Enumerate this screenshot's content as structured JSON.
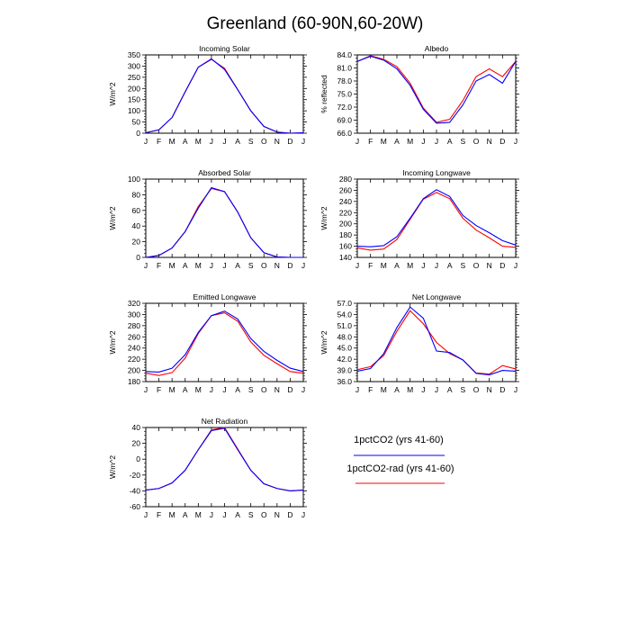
{
  "figure": {
    "title": "Greenland (60-90N,60-20W)"
  },
  "legend": {
    "items": [
      {
        "label": "1pctCO2 (yrs 41-60)",
        "color": "#0000ff"
      },
      {
        "label": "1pctCO2-rad (yrs 41-60)",
        "color": "#ff0000"
      }
    ]
  },
  "chart_data": [
    {
      "type": "line",
      "title": "Incoming Solar",
      "ylabel": "W/m^2",
      "x": [
        "J",
        "F",
        "M",
        "A",
        "M",
        "J",
        "J",
        "A",
        "S",
        "O",
        "N",
        "D",
        "J"
      ],
      "ylim": [
        0,
        350
      ],
      "yticks": [
        "0",
        "50",
        "100",
        "150",
        "200",
        "250",
        "300",
        "350"
      ],
      "series": [
        {
          "name": "1pctCO2 (yrs 41-60)",
          "color": "#0000ff",
          "values": [
            2,
            15,
            70,
            185,
            295,
            332,
            285,
            195,
            100,
            30,
            5,
            0,
            2
          ]
        },
        {
          "name": "1pctCO2-rad (yrs 41-60)",
          "color": "#ff0000",
          "values": [
            2,
            15,
            70,
            185,
            295,
            330,
            290,
            195,
            100,
            30,
            5,
            0,
            2
          ]
        }
      ]
    },
    {
      "type": "line",
      "title": "Albedo",
      "ylabel": "% reflected",
      "x": [
        "J",
        "F",
        "M",
        "A",
        "M",
        "J",
        "J",
        "A",
        "S",
        "O",
        "N",
        "D",
        "J"
      ],
      "ylim": [
        66,
        84
      ],
      "yticks": [
        "66.0",
        "69.0",
        "72.0",
        "75.0",
        "78.0",
        "81.0",
        "84.0"
      ],
      "series": [
        {
          "name": "1pctCO2 (yrs 41-60)",
          "color": "#0000ff",
          "values": [
            82.5,
            83.7,
            82.8,
            80.8,
            77.0,
            71.5,
            68.3,
            68.5,
            72.5,
            78.0,
            79.5,
            77.5,
            82.5
          ]
        },
        {
          "name": "1pctCO2-rad (yrs 41-60)",
          "color": "#ff0000",
          "values": [
            82.5,
            83.8,
            83.0,
            81.3,
            77.5,
            71.8,
            68.5,
            69.2,
            73.5,
            79.0,
            80.8,
            79.0,
            82.5
          ]
        }
      ]
    },
    {
      "type": "line",
      "title": "Absorbed Solar",
      "ylabel": "W/m^2",
      "x": [
        "J",
        "F",
        "M",
        "A",
        "M",
        "J",
        "J",
        "A",
        "S",
        "O",
        "N",
        "D",
        "J"
      ],
      "ylim": [
        0,
        100
      ],
      "yticks": [
        "0",
        "20",
        "40",
        "60",
        "80",
        "100"
      ],
      "series": [
        {
          "name": "1pctCO2 (yrs 41-60)",
          "color": "#0000ff",
          "values": [
            0,
            2.5,
            12,
            33,
            63,
            89,
            84,
            58,
            25,
            6,
            0.5,
            0,
            0
          ]
        },
        {
          "name": "1pctCO2-rad (yrs 41-60)",
          "color": "#ff0000",
          "values": [
            0,
            2.5,
            12,
            33,
            65,
            88,
            84,
            58,
            25,
            6,
            0.5,
            0,
            0
          ]
        }
      ]
    },
    {
      "type": "line",
      "title": "Incoming Longwave",
      "ylabel": "W/m^2",
      "x": [
        "J",
        "F",
        "M",
        "A",
        "M",
        "J",
        "J",
        "A",
        "S",
        "O",
        "N",
        "D",
        "J"
      ],
      "ylim": [
        140,
        280
      ],
      "yticks": [
        "140",
        "160",
        "180",
        "200",
        "220",
        "240",
        "260",
        "280"
      ],
      "series": [
        {
          "name": "1pctCO2 (yrs 41-60)",
          "color": "#0000ff",
          "values": [
            160,
            159,
            161,
            177,
            210,
            245,
            261,
            249,
            215,
            197,
            184,
            170,
            162
          ]
        },
        {
          "name": "1pctCO2-rad (yrs 41-60)",
          "color": "#ff0000",
          "values": [
            157,
            153,
            155,
            172,
            208,
            244,
            256,
            245,
            210,
            189,
            175,
            160,
            158
          ]
        }
      ]
    },
    {
      "type": "line",
      "title": "Emitted Longwave",
      "ylabel": "W/m^2",
      "x": [
        "J",
        "F",
        "M",
        "A",
        "M",
        "J",
        "J",
        "A",
        "S",
        "O",
        "N",
        "D",
        "J"
      ],
      "ylim": [
        180,
        320
      ],
      "yticks": [
        "180",
        "200",
        "220",
        "240",
        "260",
        "280",
        "300",
        "320"
      ],
      "series": [
        {
          "name": "1pctCO2 (yrs 41-60)",
          "color": "#0000ff",
          "values": [
            198,
            197,
            204,
            228,
            268,
            298,
            306,
            292,
            257,
            234,
            218,
            204,
            198
          ]
        },
        {
          "name": "1pctCO2-rad (yrs 41-60)",
          "color": "#ff0000",
          "values": [
            195,
            191,
            196,
            222,
            266,
            298,
            303,
            288,
            251,
            227,
            212,
            198,
            195
          ]
        }
      ]
    },
    {
      "type": "line",
      "title": "Net Longwave",
      "ylabel": "W/m^2",
      "x": [
        "J",
        "F",
        "M",
        "A",
        "M",
        "J",
        "J",
        "A",
        "S",
        "O",
        "N",
        "D",
        "J"
      ],
      "ylim": [
        36,
        57
      ],
      "yticks": [
        "36.0",
        "39.0",
        "42.0",
        "45.0",
        "48.0",
        "51.0",
        "54.0",
        "57.0"
      ],
      "series": [
        {
          "name": "1pctCO2 (yrs 41-60)",
          "color": "#0000ff",
          "values": [
            38.8,
            39.5,
            43.5,
            50.5,
            56.0,
            53.0,
            44.2,
            43.8,
            41.8,
            38.2,
            37.8,
            39.0,
            38.8
          ]
        },
        {
          "name": "1pctCO2-rad (yrs 41-60)",
          "color": "#ff0000",
          "values": [
            39.2,
            40.0,
            43.0,
            49.5,
            55.0,
            51.5,
            46.5,
            43.5,
            41.8,
            38.3,
            38.0,
            40.3,
            39.4
          ]
        }
      ]
    },
    {
      "type": "line",
      "title": "Net Radiation",
      "ylabel": "W/m^2",
      "x": [
        "J",
        "F",
        "M",
        "A",
        "M",
        "J",
        "J",
        "A",
        "S",
        "O",
        "N",
        "D",
        "J"
      ],
      "ylim": [
        -60,
        40
      ],
      "yticks": [
        "-60",
        "-40",
        "-20",
        "0",
        "20",
        "40"
      ],
      "series": [
        {
          "name": "1pctCO2 (yrs 41-60)",
          "color": "#0000ff",
          "values": [
            -39,
            -37,
            -30,
            -14,
            12,
            36,
            39,
            12,
            -14,
            -31,
            -37,
            -40,
            -39
          ]
        },
        {
          "name": "1pctCO2-rad (yrs 41-60)",
          "color": "#ff0000",
          "values": [
            -39,
            -37,
            -30,
            -14,
            12,
            37,
            40,
            13,
            -14,
            -31,
            -37,
            -40,
            -39
          ]
        }
      ]
    }
  ]
}
